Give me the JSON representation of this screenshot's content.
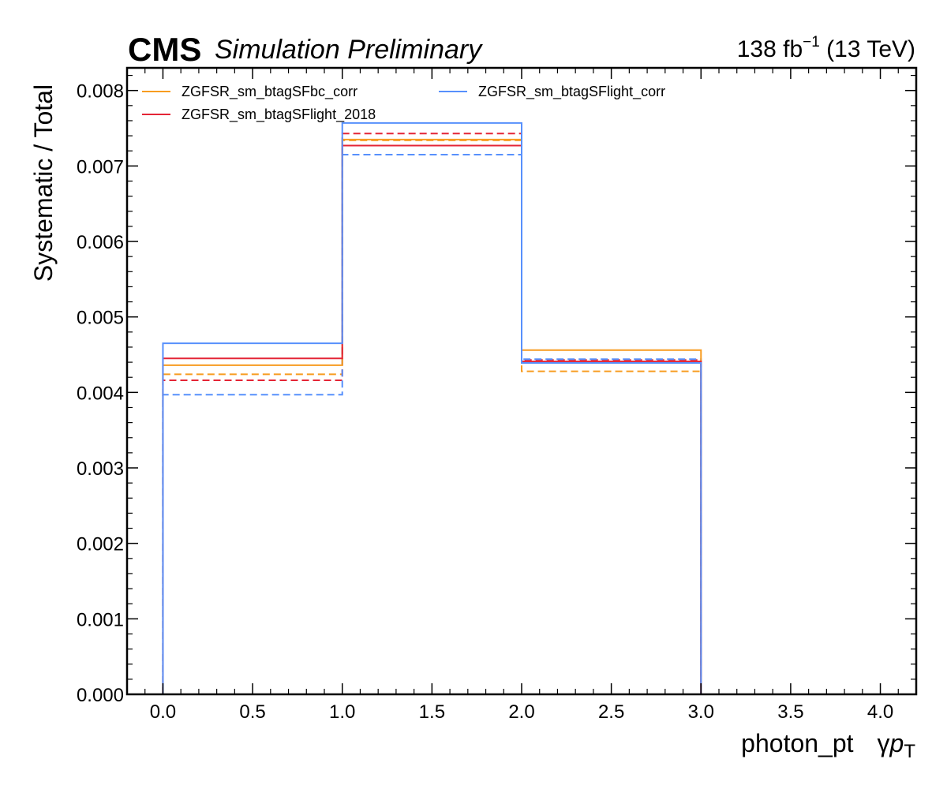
{
  "header": {
    "experiment": "CMS",
    "status": "Simulation Preliminary",
    "lumi_value": "138 fb",
    "lumi_exp": "−1",
    "lumi_energy": " (13 TeV)"
  },
  "chart_data": {
    "type": "step",
    "xlabel_main": "photon_pt",
    "xlabel_symbol": "γ",
    "xlabel_var": "p",
    "xlabel_sub": "T",
    "ylabel": "Systematic / Total",
    "xlim": [
      -0.2,
      4.2
    ],
    "ylim": [
      0,
      0.0083
    ],
    "x_ticks": [
      "0.0",
      "0.5",
      "1.0",
      "1.5",
      "2.0",
      "2.5",
      "3.0",
      "3.5",
      "4.0"
    ],
    "y_ticks": [
      "0.000",
      "0.001",
      "0.002",
      "0.003",
      "0.004",
      "0.005",
      "0.006",
      "0.007",
      "0.008"
    ],
    "bin_edges": [
      0,
      1,
      2,
      3
    ],
    "legend_position": "top-left",
    "series": [
      {
        "name": "ZGFSR_sm_btagSFbc_corr",
        "color": "#f89c20",
        "up": [
          0.00436,
          0.00735,
          0.00456
        ],
        "down": [
          0.00424,
          0.00734,
          0.00428
        ]
      },
      {
        "name": "ZGFSR_sm_btagSFlight_2018",
        "color": "#e42536",
        "up": [
          0.00445,
          0.00727,
          0.00441
        ],
        "down": [
          0.00416,
          0.00743,
          0.00443
        ]
      },
      {
        "name": "ZGFSR_sm_btagSFlight_corr",
        "color": "#5790fc",
        "up": [
          0.00465,
          0.00757,
          0.00439
        ],
        "down": [
          0.00397,
          0.00715,
          0.00444
        ]
      }
    ]
  }
}
